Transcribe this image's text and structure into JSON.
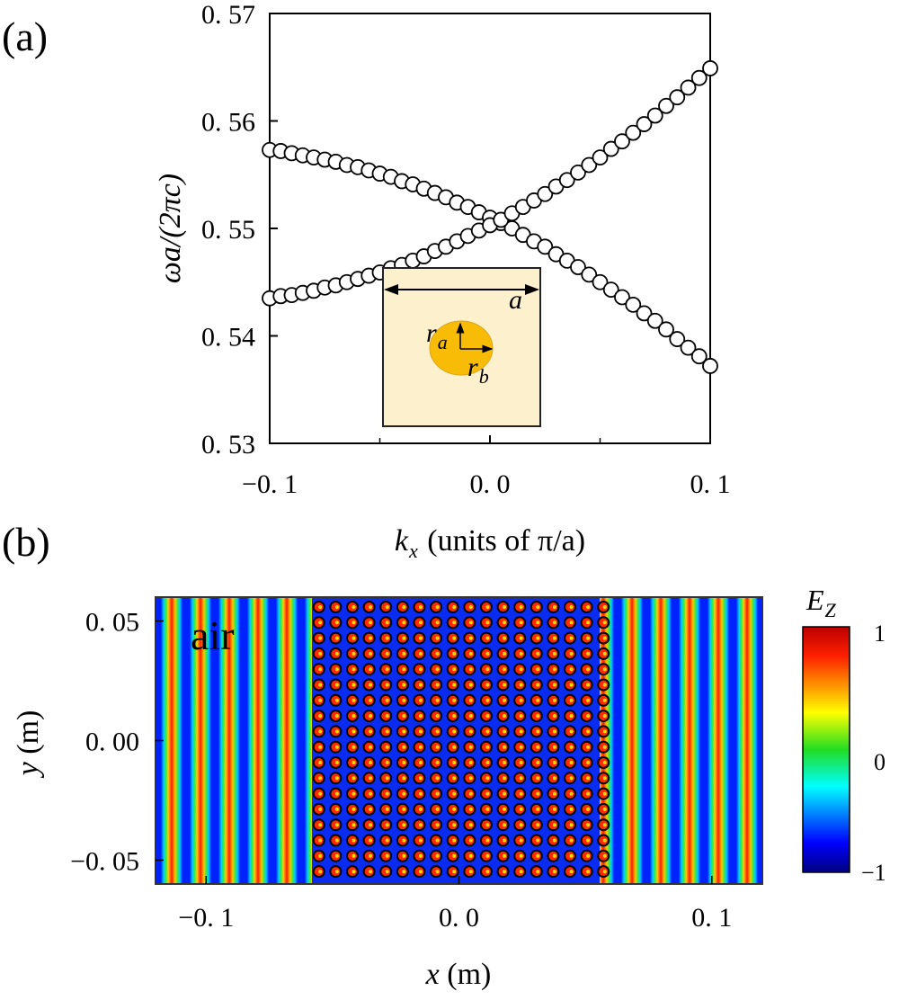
{
  "panel_labels": [
    "(a)",
    "(b)"
  ],
  "chart_data": [
    {
      "type": "scatter",
      "title": "",
      "xlabel_main": "k",
      "xlabel_sub": "x",
      "xlabel_rest": " (units of π/a)",
      "ylabel": "ωa/(2πc)",
      "xlim": [
        -0.1,
        0.1
      ],
      "ylim": [
        0.53,
        0.57
      ],
      "xticks": [
        -0.1,
        0.0,
        0.1
      ],
      "xtick_labels": [
        "−0. 1",
        "0. 0",
        "0. 1"
      ],
      "yticks": [
        0.53,
        0.54,
        0.55,
        0.56,
        0.57
      ],
      "ytick_labels": [
        "0. 53",
        "0. 54",
        "0. 55",
        "0. 56",
        "0. 57"
      ],
      "marker": "open-circle",
      "x": [
        -0.1,
        -0.095,
        -0.09,
        -0.085,
        -0.08,
        -0.075,
        -0.07,
        -0.065,
        -0.06,
        -0.055,
        -0.05,
        -0.045,
        -0.04,
        -0.035,
        -0.03,
        -0.025,
        -0.02,
        -0.015,
        -0.01,
        -0.005,
        0,
        0.005,
        0.01,
        0.015,
        0.02,
        0.025,
        0.03,
        0.035,
        0.04,
        0.045,
        0.05,
        0.055,
        0.06,
        0.065,
        0.07,
        0.075,
        0.08,
        0.085,
        0.09,
        0.095,
        0.1
      ],
      "series": [
        {
          "name": "band-descending",
          "values": [
            0.5573,
            0.5572,
            0.557,
            0.5568,
            0.5566,
            0.5564,
            0.5562,
            0.5559,
            0.5557,
            0.5554,
            0.5551,
            0.5548,
            0.5544,
            0.5541,
            0.5537,
            0.5533,
            0.5529,
            0.5524,
            0.552,
            0.5515,
            0.551,
            0.5505,
            0.55,
            0.5494,
            0.5488,
            0.5483,
            0.5476,
            0.547,
            0.5464,
            0.5457,
            0.545,
            0.5443,
            0.5436,
            0.5429,
            0.5421,
            0.5414,
            0.5406,
            0.5397,
            0.5389,
            0.5381,
            0.5372
          ]
        },
        {
          "name": "band-ascending",
          "values": [
            0.5435,
            0.5437,
            0.5438,
            0.544,
            0.5442,
            0.5445,
            0.5447,
            0.545,
            0.5453,
            0.5456,
            0.5459,
            0.5463,
            0.5466,
            0.547,
            0.5474,
            0.5479,
            0.5483,
            0.5488,
            0.5493,
            0.5498,
            0.5503,
            0.5508,
            0.5514,
            0.552,
            0.5526,
            0.5532,
            0.5539,
            0.5545,
            0.5552,
            0.5559,
            0.5566,
            0.5574,
            0.5581,
            0.5589,
            0.5597,
            0.5605,
            0.5614,
            0.5622,
            0.5631,
            0.564,
            0.5649
          ]
        }
      ],
      "inset": {
        "lattice_label": "a",
        "r_main": "r",
        "ra_sub": "a",
        "rb_sub": "b",
        "cell_color": "#fdf0cc",
        "rod_color": "#f8bc06"
      }
    },
    {
      "type": "heatmap",
      "xlabel_main": "x",
      "xlabel_rest": " (m)",
      "ylabel_main": "y",
      "ylabel_rest": " (m)",
      "xlim": [
        -0.12,
        0.12
      ],
      "ylim": [
        -0.06,
        0.06
      ],
      "xticks": [
        -0.1,
        0.0,
        0.1
      ],
      "xtick_labels": [
        "−0. 1",
        "0. 0",
        "0. 1"
      ],
      "yticks": [
        0.05,
        0.0,
        -0.05
      ],
      "ytick_labels": [
        "0. 05",
        "0. 00",
        "−0. 05"
      ],
      "annotation": "air",
      "crystal_region_x": [
        -0.06,
        0.06
      ],
      "lattice_rows": 18,
      "lattice_cols": 18,
      "colorbar": {
        "title_main": "E",
        "title_sub": "Z",
        "range": [
          -1,
          1
        ],
        "tick_labels": [
          "1",
          "0",
          "−1"
        ],
        "colormap": "jet"
      }
    }
  ]
}
